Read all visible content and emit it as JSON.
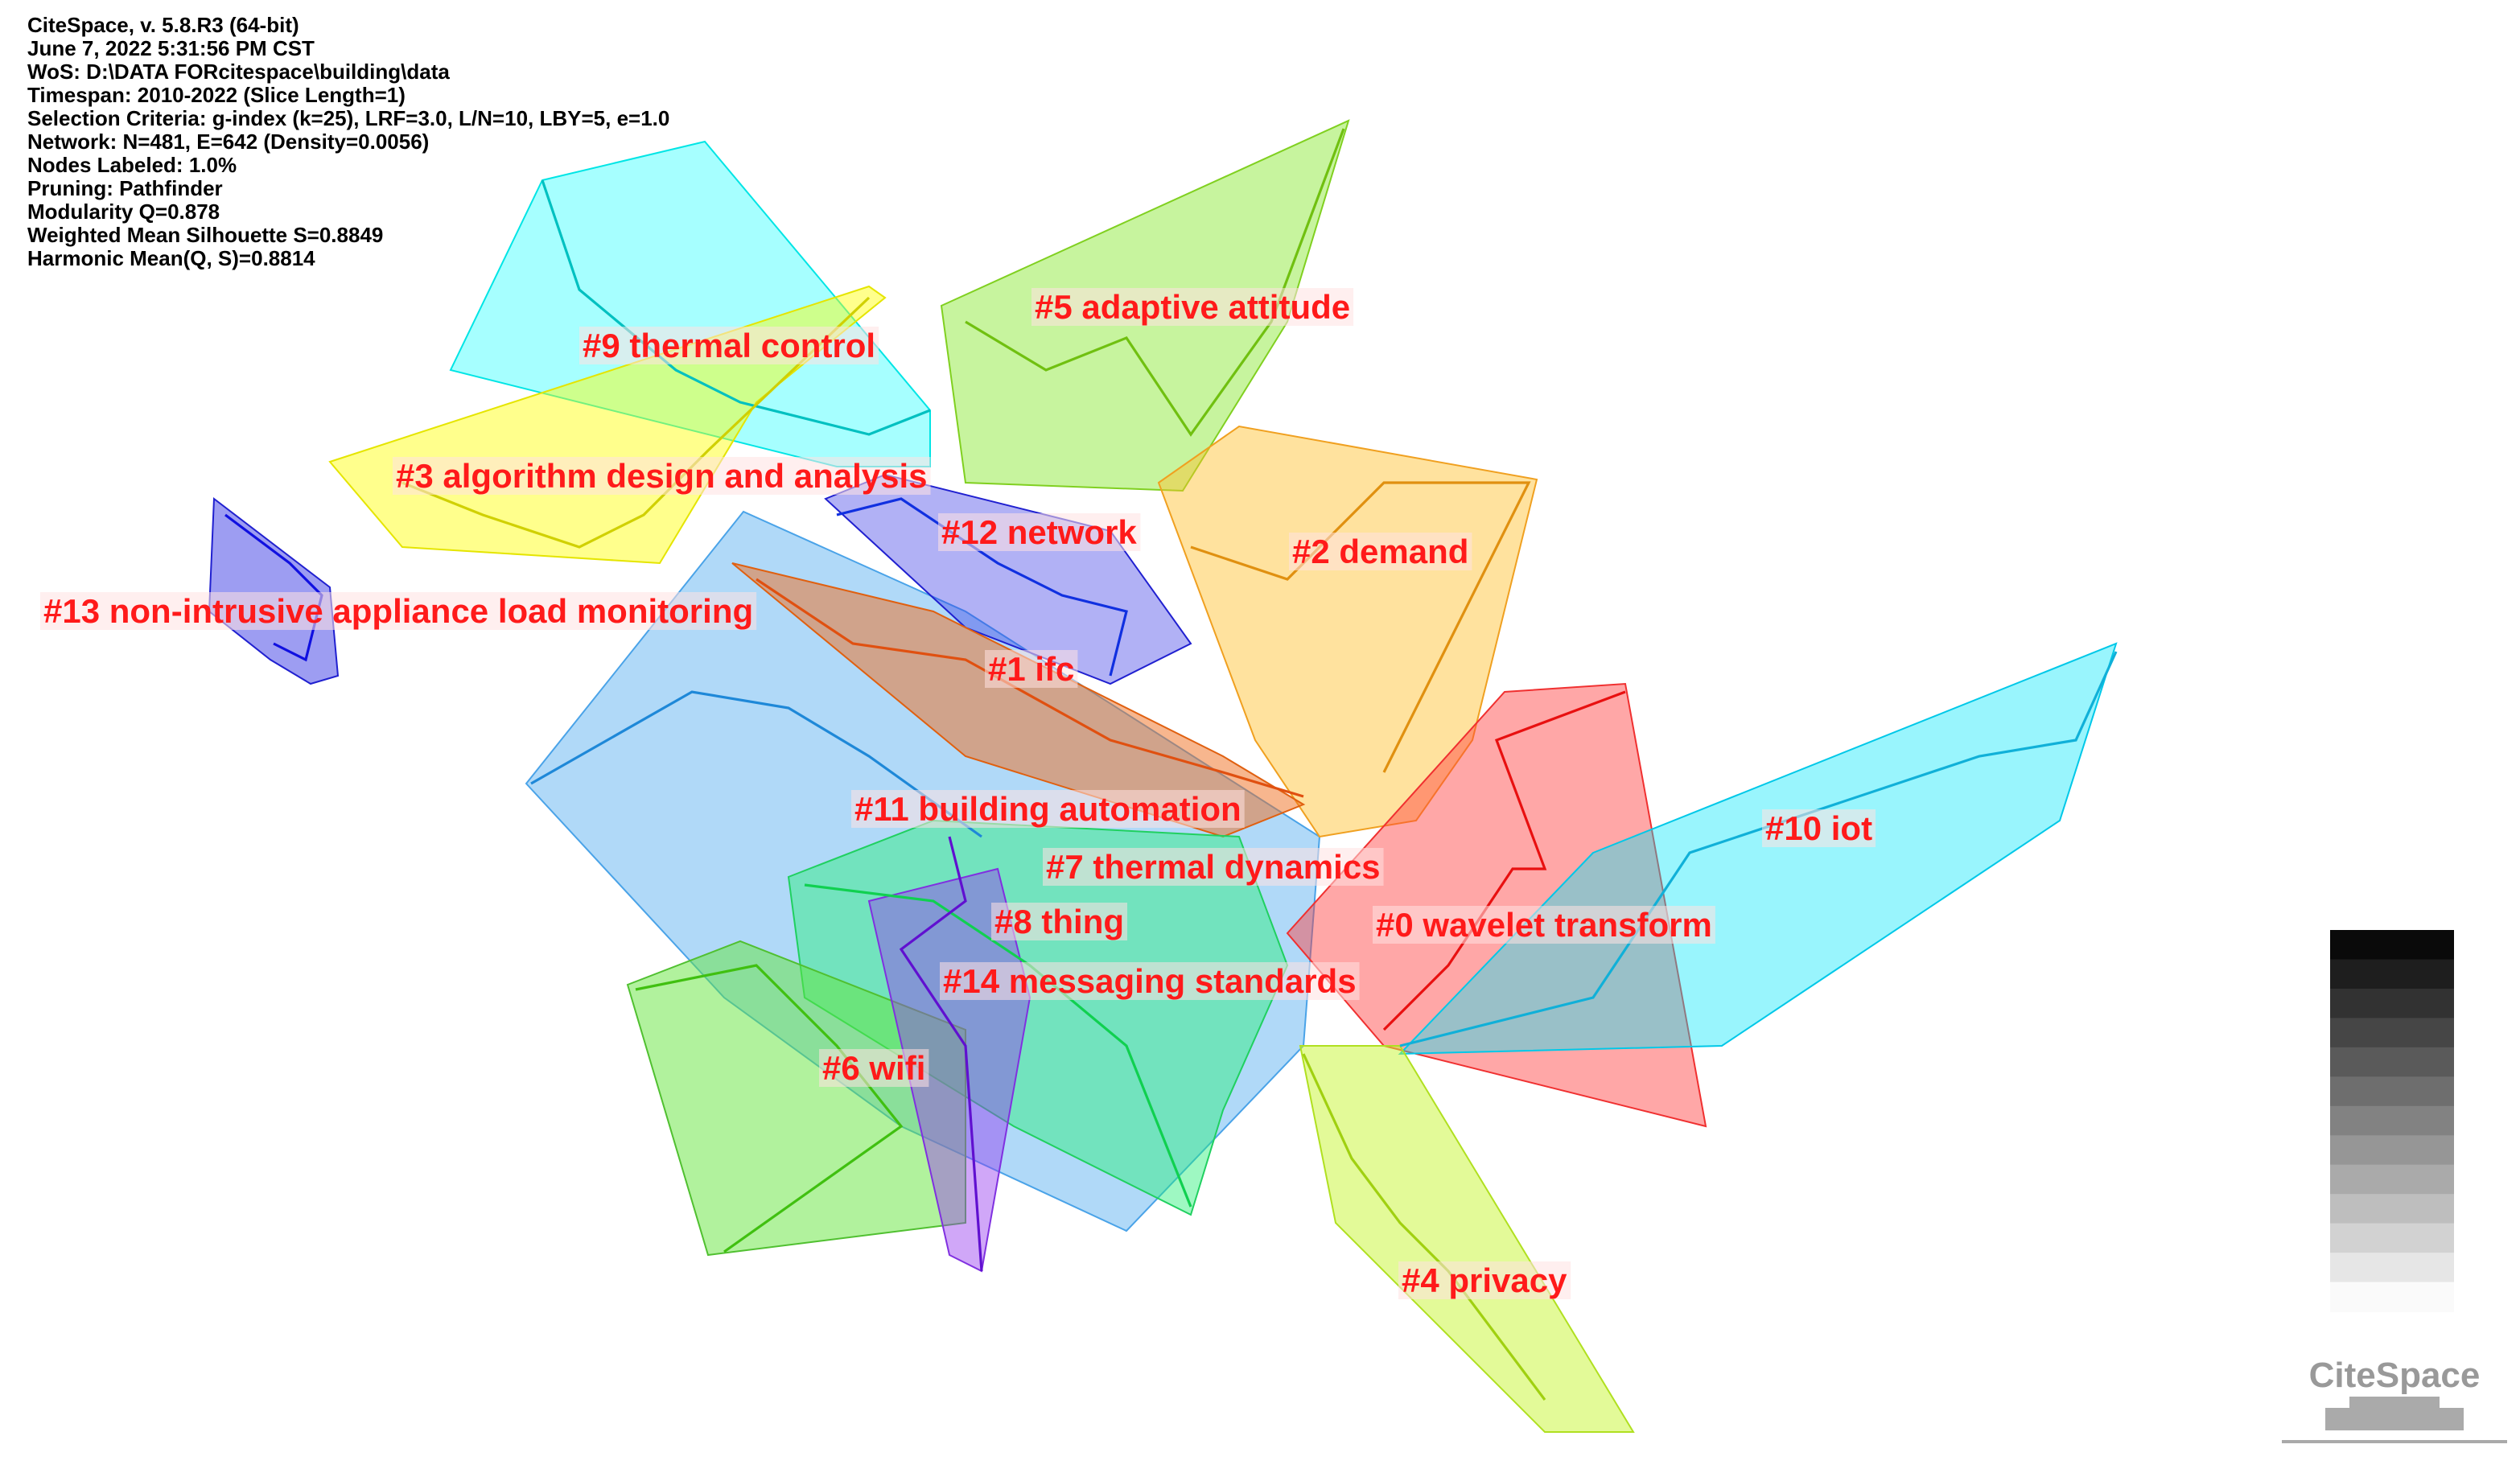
{
  "info": [
    "CiteSpace, v. 5.8.R3 (64-bit)",
    "June 7, 2022 5:31:56 PM CST",
    "WoS: D:\\DATA FORcitespace\\building\\data",
    "Timespan: 2010-2022 (Slice Length=1)",
    "Selection Criteria: g-index (k=25), LRF=3.0, L/N=10, LBY=5, e=1.0",
    "Network: N=481, E=642 (Density=0.0056)",
    "Nodes Labeled: 1.0%",
    "Pruning: Pathfinder",
    "Modularity Q=0.878",
    "Weighted Mean Silhouette S=0.8849",
    "Harmonic Mean(Q, S)=0.8814"
  ],
  "clusters": [
    {
      "label": "#9 thermal control"
    },
    {
      "label": "#5 adaptive attitude"
    },
    {
      "label": "#3 algorithm design and analysis"
    },
    {
      "label": "#12 network"
    },
    {
      "label": "#2 demand"
    },
    {
      "label": "#13 non-intrusive appliance load monitoring"
    },
    {
      "label": "#1 ifc"
    },
    {
      "label": "#11 building automation"
    },
    {
      "label": "#10 iot"
    },
    {
      "label": "#7 thermal dynamics"
    },
    {
      "label": "#0 wavelet transform"
    },
    {
      "label": "#8 thing"
    },
    {
      "label": "#14 messaging standards"
    },
    {
      "label": "#6 wifi"
    },
    {
      "label": "#4 privacy"
    }
  ],
  "logo": "CiteSpace"
}
